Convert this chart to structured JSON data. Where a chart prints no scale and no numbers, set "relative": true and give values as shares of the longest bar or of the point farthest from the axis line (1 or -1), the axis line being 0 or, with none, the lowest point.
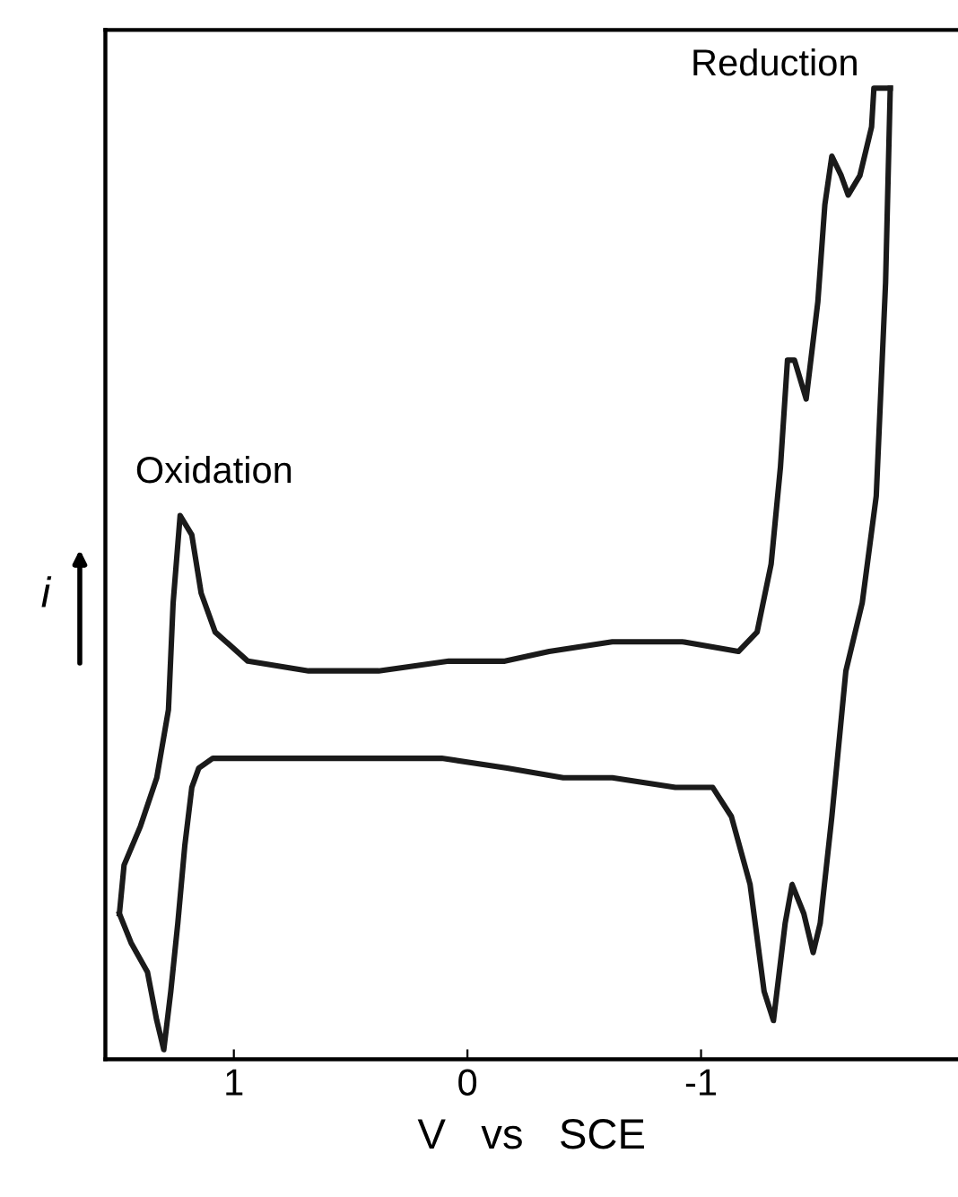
{
  "chart_data": {
    "type": "line",
    "relative": true,
    "xlabel": "V   vs   SCE",
    "ylabel": "i",
    "xlim": [
      1.55,
      -2.1
    ],
    "xticks": [
      1,
      0,
      -1
    ],
    "grid": false,
    "legend": false,
    "marker": "none",
    "line_style": "solid",
    "tick_labels": "x",
    "annotations": [
      {
        "text": "Oxidation",
        "x": 1.23,
        "y": 0.56
      },
      {
        "text": "Reduction",
        "x": -1.74,
        "y": 1.0
      }
    ],
    "series": [
      {
        "color": "#1a1a1a",
        "x": [
          -1.81,
          -1.79,
          -1.75,
          -1.69,
          -1.62,
          -1.56,
          -1.51,
          -1.48,
          -1.44,
          -1.39,
          -1.36,
          -1.31,
          -1.27,
          -1.21,
          -1.13,
          -1.05,
          -0.89,
          -0.62,
          -0.41,
          -0.17,
          0.11,
          0.32,
          0.63,
          0.83,
          1.09,
          1.15,
          1.18,
          1.21,
          1.24,
          1.27,
          1.3,
          1.33,
          1.37,
          1.44,
          1.49
        ],
        "values": [
          1.0,
          0.8,
          0.58,
          0.47,
          0.4,
          0.25,
          0.14,
          0.11,
          0.15,
          0.18,
          0.14,
          0.04,
          0.07,
          0.18,
          0.25,
          0.28,
          0.28,
          0.29,
          0.29,
          0.3,
          0.31,
          0.31,
          0.31,
          0.31,
          0.31,
          0.3,
          0.28,
          0.22,
          0.14,
          0.07,
          0.01,
          0.04,
          0.09,
          0.12,
          0.15
        ]
      },
      {
        "color": "#1a1a1a",
        "x": [
          1.49,
          1.47,
          1.4,
          1.33,
          1.28,
          1.26,
          1.23,
          1.18,
          1.14,
          1.08,
          0.94,
          0.68,
          0.38,
          0.08,
          -0.16,
          -0.35,
          -0.62,
          -0.92,
          -1.16,
          -1.24,
          -1.3,
          -1.34,
          -1.37,
          -1.4,
          -1.45,
          -1.5,
          -1.53,
          -1.56,
          -1.6,
          -1.63,
          -1.68,
          -1.73,
          -1.74,
          -1.81
        ],
        "values": [
          0.15,
          0.2,
          0.24,
          0.29,
          0.36,
          0.47,
          0.56,
          0.54,
          0.48,
          0.44,
          0.41,
          0.4,
          0.4,
          0.41,
          0.41,
          0.42,
          0.43,
          0.43,
          0.42,
          0.44,
          0.51,
          0.61,
          0.72,
          0.72,
          0.68,
          0.78,
          0.88,
          0.93,
          0.91,
          0.89,
          0.91,
          0.96,
          1.0,
          1.0
        ]
      }
    ]
  }
}
